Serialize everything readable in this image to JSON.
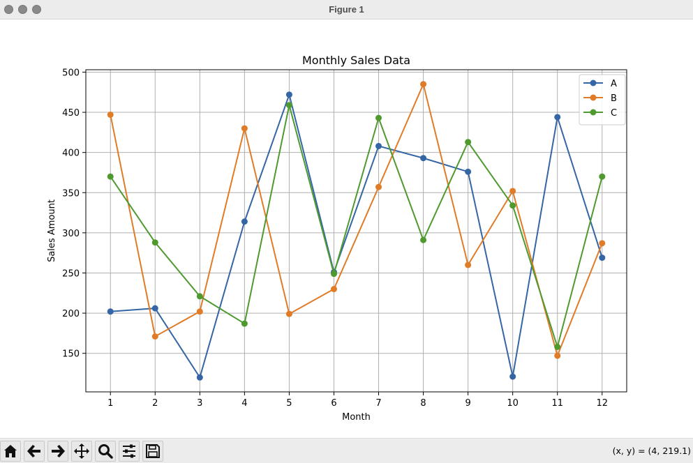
{
  "window": {
    "title": "Figure 1"
  },
  "toolbar": {
    "buttons": [
      {
        "name": "home-button",
        "icon": "home-icon"
      },
      {
        "name": "back-button",
        "icon": "arrow-left-icon"
      },
      {
        "name": "forward-button",
        "icon": "arrow-right-icon"
      },
      {
        "name": "pan-button",
        "icon": "move-icon"
      },
      {
        "name": "zoom-button",
        "icon": "magnifier-icon"
      },
      {
        "name": "configure-subplots-button",
        "icon": "sliders-icon"
      },
      {
        "name": "save-button",
        "icon": "floppy-disk-icon"
      }
    ],
    "coords": "(x, y) = (4, 219.1)"
  },
  "chart_data": {
    "type": "line",
    "title": "Monthly Sales Data",
    "xlabel": "Month",
    "ylabel": "Sales Amount",
    "x": [
      1,
      2,
      3,
      4,
      5,
      6,
      7,
      8,
      9,
      10,
      11,
      12
    ],
    "x_ticks": [
      1,
      2,
      3,
      4,
      5,
      6,
      7,
      8,
      9,
      10,
      11,
      12
    ],
    "y_ticks": [
      150,
      200,
      250,
      300,
      350,
      400,
      450,
      500
    ],
    "xlim": [
      0.45,
      12.55
    ],
    "ylim": [
      102,
      503
    ],
    "grid": true,
    "legend_position": "top-right",
    "marker": "circle",
    "series": [
      {
        "name": "A",
        "color": "#3465a4",
        "values": [
          202,
          206,
          120,
          314,
          472,
          251,
          408,
          393,
          376,
          121,
          444,
          269
        ]
      },
      {
        "name": "B",
        "color": "#e07b27",
        "values": [
          447,
          171,
          202,
          430,
          199,
          230,
          357,
          485,
          260,
          352,
          147,
          287
        ]
      },
      {
        "name": "C",
        "color": "#4e9a2f",
        "values": [
          370,
          288,
          221,
          187,
          459,
          249,
          443,
          291,
          413,
          334,
          158,
          370
        ]
      }
    ]
  }
}
